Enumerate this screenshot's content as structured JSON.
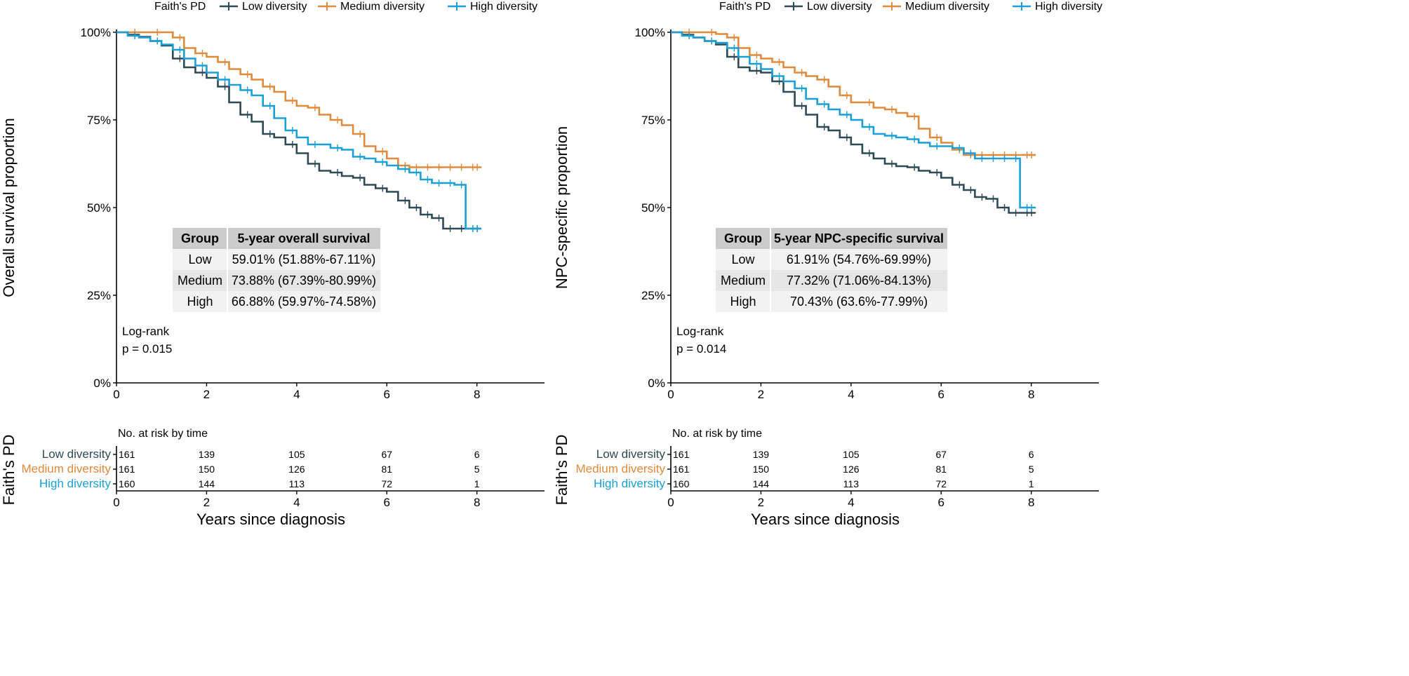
{
  "figure": {
    "legend_title": "Faith's PD",
    "legend_labels": [
      "Low diversity",
      "Medium diversity",
      "High diversity"
    ],
    "colors": {
      "low": "#2e4a56",
      "medium": "#e08a3c",
      "high": "#1a9fd6",
      "axis": "#000000",
      "table_header": "#cccccc",
      "table_row_a": "#f2f2f2",
      "table_row_b": "#e6e6e6"
    }
  },
  "chart_data": [
    {
      "type": "step-line",
      "title": "",
      "xlabel": "Years since diagnosis",
      "ylabel": "Overall survival proportion",
      "xlim": [
        0,
        9.5
      ],
      "ylim": [
        0,
        1
      ],
      "xticks": [
        0,
        2,
        4,
        6,
        8
      ],
      "yticks": [
        0,
        0.25,
        0.5,
        0.75,
        1.0
      ],
      "ytick_labels": [
        "0%",
        "25%",
        "50%",
        "75%",
        "100%"
      ],
      "legend_position": "top",
      "x": [
        0,
        0.25,
        0.5,
        0.75,
        1,
        1.25,
        1.5,
        1.75,
        2,
        2.25,
        2.5,
        2.75,
        3,
        3.25,
        3.5,
        3.75,
        4,
        4.25,
        4.5,
        4.75,
        5,
        5.25,
        5.5,
        5.75,
        6,
        6.25,
        6.5,
        6.75,
        7,
        7.25,
        7.5,
        7.75,
        8,
        8.1
      ],
      "series": [
        {
          "name": "Low diversity",
          "color_key": "low",
          "values": [
            1.0,
            0.993,
            0.987,
            0.975,
            0.962,
            0.925,
            0.9,
            0.885,
            0.87,
            0.845,
            0.8,
            0.765,
            0.745,
            0.71,
            0.7,
            0.68,
            0.655,
            0.625,
            0.605,
            0.6,
            0.59,
            0.585,
            0.565,
            0.555,
            0.545,
            0.52,
            0.5,
            0.48,
            0.47,
            0.44,
            0.44,
            0.44,
            0.44,
            0.44
          ]
        },
        {
          "name": "Medium diversity",
          "color_key": "medium",
          "values": [
            1.0,
            1.0,
            1.0,
            1.0,
            1.0,
            0.985,
            0.955,
            0.94,
            0.93,
            0.915,
            0.895,
            0.88,
            0.865,
            0.845,
            0.83,
            0.805,
            0.79,
            0.785,
            0.765,
            0.75,
            0.735,
            0.71,
            0.675,
            0.66,
            0.64,
            0.62,
            0.615,
            0.615,
            0.615,
            0.615,
            0.615,
            0.615,
            0.615,
            0.615
          ]
        },
        {
          "name": "High diversity",
          "color_key": "high",
          "values": [
            1.0,
            0.99,
            0.985,
            0.975,
            0.965,
            0.95,
            0.925,
            0.905,
            0.885,
            0.865,
            0.85,
            0.835,
            0.82,
            0.79,
            0.755,
            0.72,
            0.7,
            0.68,
            0.68,
            0.67,
            0.665,
            0.645,
            0.64,
            0.63,
            0.62,
            0.61,
            0.6,
            0.58,
            0.57,
            0.57,
            0.565,
            0.44,
            0.44,
            0.44
          ]
        }
      ],
      "annotation": {
        "line1": "Log-rank",
        "line2": "p = 0.015"
      },
      "summary_table": {
        "headers": [
          "Group",
          "5-year overall survival"
        ],
        "rows": [
          [
            "Low",
            "59.01% (51.88%-67.11%)"
          ],
          [
            "Medium",
            "73.88% (67.39%-80.99%)"
          ],
          [
            "High",
            "66.88% (59.97%-74.58%)"
          ]
        ]
      },
      "risk_table": {
        "title": "No. at risk by time",
        "strata_title": "Faith's PD",
        "times": [
          0,
          2,
          4,
          6,
          8
        ],
        "rows": [
          {
            "label": "Low diversity",
            "color_key": "low",
            "counts": [
              "161",
              "139",
              "105",
              "67",
              "6"
            ]
          },
          {
            "label": "Medium diversity",
            "color_key": "medium",
            "counts": [
              "161",
              "150",
              "126",
              "81",
              "5"
            ]
          },
          {
            "label": "High diversity",
            "color_key": "high",
            "counts": [
              "160",
              "144",
              "113",
              "72",
              "1"
            ]
          }
        ]
      }
    },
    {
      "type": "step-line",
      "title": "",
      "xlabel": "Years since diagnosis",
      "ylabel": "NPC-specific proportion",
      "xlim": [
        0,
        9.5
      ],
      "ylim": [
        0,
        1
      ],
      "xticks": [
        0,
        2,
        4,
        6,
        8
      ],
      "yticks": [
        0,
        0.25,
        0.5,
        0.75,
        1.0
      ],
      "ytick_labels": [
        "0%",
        "25%",
        "50%",
        "75%",
        "100%"
      ],
      "legend_position": "top",
      "x": [
        0,
        0.25,
        0.5,
        0.75,
        1,
        1.25,
        1.5,
        1.75,
        2,
        2.25,
        2.5,
        2.75,
        3,
        3.25,
        3.5,
        3.75,
        4,
        4.25,
        4.5,
        4.75,
        5,
        5.25,
        5.5,
        5.75,
        6,
        6.25,
        6.5,
        6.75,
        7,
        7.25,
        7.5,
        7.75,
        8,
        8.1
      ],
      "series": [
        {
          "name": "Low diversity",
          "color_key": "low",
          "values": [
            1.0,
            0.993,
            0.985,
            0.975,
            0.965,
            0.93,
            0.9,
            0.89,
            0.885,
            0.86,
            0.83,
            0.79,
            0.765,
            0.73,
            0.72,
            0.7,
            0.68,
            0.655,
            0.64,
            0.625,
            0.618,
            0.615,
            0.605,
            0.6,
            0.585,
            0.565,
            0.55,
            0.53,
            0.525,
            0.5,
            0.485,
            0.485,
            0.485,
            0.485
          ]
        },
        {
          "name": "Medium diversity",
          "color_key": "medium",
          "values": [
            1.0,
            1.0,
            1.0,
            1.0,
            0.995,
            0.985,
            0.955,
            0.935,
            0.925,
            0.915,
            0.9,
            0.885,
            0.875,
            0.865,
            0.845,
            0.82,
            0.8,
            0.8,
            0.785,
            0.78,
            0.77,
            0.76,
            0.725,
            0.7,
            0.685,
            0.665,
            0.65,
            0.65,
            0.65,
            0.65,
            0.65,
            0.65,
            0.65,
            0.65
          ]
        },
        {
          "name": "High diversity",
          "color_key": "high",
          "values": [
            1.0,
            0.99,
            0.985,
            0.975,
            0.97,
            0.955,
            0.93,
            0.91,
            0.895,
            0.875,
            0.86,
            0.84,
            0.81,
            0.795,
            0.78,
            0.765,
            0.75,
            0.73,
            0.71,
            0.705,
            0.7,
            0.695,
            0.685,
            0.675,
            0.675,
            0.67,
            0.655,
            0.64,
            0.64,
            0.64,
            0.64,
            0.5,
            0.5,
            0.5
          ]
        }
      ],
      "annotation": {
        "line1": "Log-rank",
        "line2": "p = 0.014"
      },
      "summary_table": {
        "headers": [
          "Group",
          "5-year NPC-specific survival"
        ],
        "rows": [
          [
            "Low",
            "61.91% (54.76%-69.99%)"
          ],
          [
            "Medium",
            "77.32% (71.06%-84.13%)"
          ],
          [
            "High",
            "70.43% (63.6%-77.99%)"
          ]
        ]
      },
      "risk_table": {
        "title": "No. at risk by time",
        "strata_title": "Faith's PD",
        "times": [
          0,
          2,
          4,
          6,
          8
        ],
        "rows": [
          {
            "label": "Low diversity",
            "color_key": "low",
            "counts": [
              "161",
              "139",
              "105",
              "67",
              "6"
            ]
          },
          {
            "label": "Medium diversity",
            "color_key": "medium",
            "counts": [
              "161",
              "150",
              "126",
              "81",
              "5"
            ]
          },
          {
            "label": "High diversity",
            "color_key": "high",
            "counts": [
              "160",
              "144",
              "113",
              "72",
              "1"
            ]
          }
        ]
      }
    }
  ]
}
